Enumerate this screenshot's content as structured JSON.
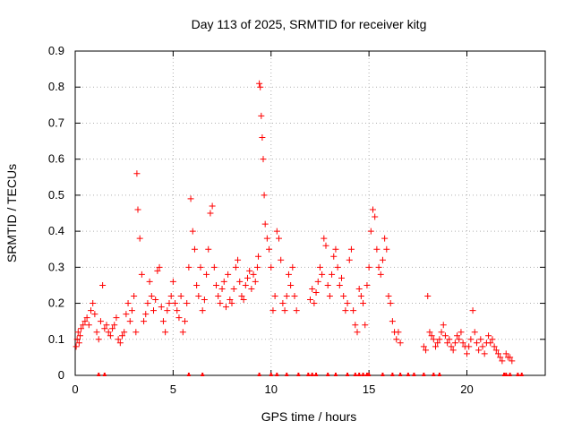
{
  "chart_data": {
    "type": "scatter",
    "title": "Day 113 of 2025, SRMTID for receiver kitg",
    "xlabel": "GPS time / hours",
    "ylabel": "SRMTID / TECUs",
    "xlim": [
      0,
      24
    ],
    "ylim": [
      0,
      0.9
    ],
    "xticks": [
      0,
      5,
      10,
      15,
      20
    ],
    "yticks": [
      0,
      0.1,
      0.2,
      0.3,
      0.4,
      0.5,
      0.6,
      0.7,
      0.8,
      0.9
    ],
    "xtick_labels": [
      "0",
      "5",
      "10",
      "15",
      "20"
    ],
    "ytick_labels": [
      "0",
      "0.1",
      "0.2",
      "0.3",
      "0.4",
      "0.5",
      "0.6",
      "0.7",
      "0.8",
      "0.9"
    ],
    "grid": true,
    "marker": "+",
    "color": "#ff0000",
    "series": [
      {
        "name": "SRMTID",
        "x": [
          0.05,
          0.1,
          0.15,
          0.2,
          0.25,
          0.3,
          0.4,
          0.5,
          0.6,
          0.7,
          0.8,
          0.9,
          1.0,
          1.1,
          1.2,
          1.3,
          1.4,
          1.5,
          1.6,
          1.7,
          1.8,
          1.9,
          2.0,
          2.1,
          2.2,
          2.3,
          2.4,
          2.5,
          2.6,
          2.7,
          2.8,
          2.9,
          3.0,
          3.1,
          3.15,
          3.2,
          3.3,
          3.4,
          3.5,
          3.6,
          3.7,
          3.8,
          3.9,
          4.0,
          4.1,
          4.2,
          4.3,
          4.4,
          4.5,
          4.6,
          4.7,
          4.8,
          4.9,
          5.0,
          5.1,
          5.2,
          5.3,
          5.4,
          5.5,
          5.6,
          5.7,
          5.8,
          5.9,
          6.0,
          6.1,
          6.2,
          6.3,
          6.4,
          6.5,
          6.6,
          6.7,
          6.8,
          6.9,
          7.0,
          7.1,
          7.2,
          7.3,
          7.4,
          7.5,
          7.6,
          7.7,
          7.8,
          7.9,
          8.0,
          8.1,
          8.2,
          8.3,
          8.4,
          8.5,
          8.6,
          8.7,
          8.8,
          8.9,
          9.0,
          9.1,
          9.2,
          9.3,
          9.35,
          9.4,
          9.45,
          9.5,
          9.55,
          9.6,
          9.65,
          9.7,
          9.8,
          9.9,
          10.0,
          10.1,
          10.2,
          10.3,
          10.4,
          10.5,
          10.6,
          10.7,
          10.8,
          10.9,
          11.0,
          11.1,
          11.2,
          11.3,
          12.0,
          12.1,
          12.2,
          12.3,
          12.4,
          12.5,
          12.6,
          12.7,
          12.8,
          12.9,
          13.0,
          13.1,
          13.2,
          13.3,
          13.4,
          13.5,
          13.6,
          13.7,
          13.8,
          13.9,
          14.0,
          14.1,
          14.2,
          14.3,
          14.4,
          14.5,
          14.6,
          14.7,
          14.8,
          14.9,
          15.0,
          15.1,
          15.2,
          15.3,
          15.4,
          15.5,
          15.6,
          15.7,
          15.8,
          15.9,
          16.0,
          16.1,
          16.2,
          16.3,
          16.4,
          16.5,
          16.6,
          17.8,
          17.9,
          18.0,
          18.1,
          18.2,
          18.3,
          18.4,
          18.5,
          18.6,
          18.7,
          18.8,
          18.9,
          19.0,
          19.1,
          19.2,
          19.3,
          19.4,
          19.5,
          19.6,
          19.7,
          19.8,
          19.9,
          20.0,
          20.1,
          20.2,
          20.3,
          20.4,
          20.5,
          20.6,
          20.7,
          20.8,
          20.9,
          21.0,
          21.1,
          21.2,
          21.3,
          21.4,
          21.5,
          21.6,
          21.7,
          21.8,
          22.0,
          22.1,
          22.2,
          22.3
        ],
        "y": [
          0.08,
          0.1,
          0.12,
          0.09,
          0.11,
          0.13,
          0.14,
          0.15,
          0.16,
          0.14,
          0.18,
          0.2,
          0.17,
          0.12,
          0.1,
          0.15,
          0.25,
          0.13,
          0.14,
          0.12,
          0.11,
          0.13,
          0.14,
          0.16,
          0.1,
          0.09,
          0.11,
          0.12,
          0.17,
          0.2,
          0.15,
          0.18,
          0.22,
          0.12,
          0.56,
          0.46,
          0.38,
          0.28,
          0.15,
          0.17,
          0.2,
          0.26,
          0.22,
          0.18,
          0.21,
          0.29,
          0.3,
          0.19,
          0.15,
          0.12,
          0.18,
          0.2,
          0.22,
          0.26,
          0.2,
          0.18,
          0.16,
          0.22,
          0.12,
          0.15,
          0.2,
          0.3,
          0.49,
          0.4,
          0.35,
          0.25,
          0.22,
          0.3,
          0.18,
          0.21,
          0.28,
          0.35,
          0.45,
          0.47,
          0.3,
          0.25,
          0.22,
          0.2,
          0.24,
          0.26,
          0.19,
          0.28,
          0.21,
          0.2,
          0.24,
          0.3,
          0.32,
          0.26,
          0.22,
          0.21,
          0.25,
          0.27,
          0.29,
          0.24,
          0.28,
          0.26,
          0.3,
          0.33,
          0.81,
          0.8,
          0.72,
          0.66,
          0.6,
          0.5,
          0.42,
          0.38,
          0.35,
          0.3,
          0.18,
          0.22,
          0.4,
          0.38,
          0.32,
          0.2,
          0.18,
          0.22,
          0.28,
          0.25,
          0.3,
          0.22,
          0.18,
          0.21,
          0.24,
          0.2,
          0.23,
          0.26,
          0.3,
          0.28,
          0.38,
          0.36,
          0.25,
          0.22,
          0.28,
          0.33,
          0.35,
          0.3,
          0.25,
          0.27,
          0.22,
          0.18,
          0.2,
          0.32,
          0.35,
          0.18,
          0.14,
          0.12,
          0.24,
          0.22,
          0.2,
          0.14,
          0.25,
          0.3,
          0.4,
          0.46,
          0.44,
          0.35,
          0.3,
          0.28,
          0.32,
          0.38,
          0.35,
          0.22,
          0.2,
          0.15,
          0.12,
          0.1,
          0.12,
          0.09,
          0.08,
          0.07,
          0.22,
          0.12,
          0.11,
          0.1,
          0.08,
          0.09,
          0.1,
          0.12,
          0.14,
          0.11,
          0.09,
          0.1,
          0.08,
          0.07,
          0.09,
          0.11,
          0.1,
          0.12,
          0.09,
          0.08,
          0.06,
          0.08,
          0.1,
          0.18,
          0.12,
          0.09,
          0.07,
          0.1,
          0.08,
          0.06,
          0.09,
          0.11,
          0.09,
          0.1,
          0.08,
          0.07,
          0.06,
          0.05,
          0.04,
          0.06,
          0.05,
          0.05,
          0.04
        ]
      }
    ],
    "baseline_markers_x": [
      1.2,
      1.5,
      5.8,
      6.5,
      9.4,
      10.0,
      10.3,
      10.8,
      11.4,
      11.9,
      12.1,
      12.3,
      12.9,
      13.3,
      13.9,
      14.3,
      14.5,
      14.7,
      14.9,
      15.0,
      15.7,
      16.2,
      16.6,
      17.0,
      17.3,
      17.8,
      18.3,
      18.6,
      21.9,
      22.0,
      22.2,
      22.6,
      22.8
    ]
  }
}
